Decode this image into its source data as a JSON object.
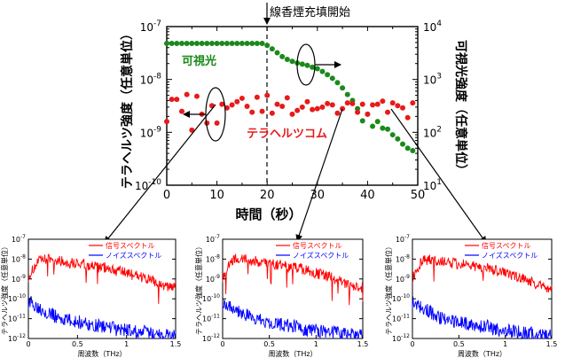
{
  "main_plot": {
    "annotation_top": "線香煙充填開始",
    "ylabel_left": "テラヘルツ強度（任意単位）",
    "ylabel_right": "可視光強度（任意単位）",
    "xlabel": "時間（秒）",
    "label_visible": "可視光",
    "label_thz": "テラヘルツコム",
    "x_ticks": [
      "0",
      "10",
      "20",
      "30",
      "40",
      "50"
    ],
    "left_ticks": [
      {
        "base": "10",
        "exp": "-7",
        "value": -7
      },
      {
        "base": "10",
        "exp": "-8",
        "value": -8
      },
      {
        "base": "10",
        "exp": "-9",
        "value": -9
      },
      {
        "base": "10",
        "exp": "-10",
        "value": -10
      }
    ],
    "right_ticks": [
      {
        "base": "10",
        "exp": "4",
        "value": 4
      },
      {
        "base": "10",
        "exp": "3",
        "value": 3
      },
      {
        "base": "10",
        "exp": "2",
        "value": 2
      },
      {
        "base": "10",
        "exp": "1",
        "value": 1
      }
    ],
    "colors": {
      "visible": "#1a8a1a",
      "thz": "#e81a1a"
    }
  },
  "chart_data": [
    {
      "type": "scatter",
      "xlabel": "時間（秒）",
      "xlim": [
        0,
        50
      ],
      "event_marker_x": 20,
      "series": [
        {
          "name": "可視光",
          "axis": "right",
          "yscale": "log",
          "ylim": [
            10,
            10000
          ],
          "color": "#1a8a1a",
          "x": [
            0,
            1,
            2,
            3,
            4,
            5,
            6,
            7,
            8,
            9,
            10,
            11,
            12,
            13,
            14,
            15,
            16,
            17,
            18,
            19,
            20,
            21,
            22,
            23,
            24,
            25,
            26,
            27,
            28,
            29,
            30,
            31,
            32,
            33,
            34,
            35,
            36,
            37,
            38,
            39,
            40,
            41,
            42,
            43,
            44,
            45,
            46,
            47,
            48,
            49
          ],
          "y": [
            4800,
            4800,
            4800,
            4800,
            4800,
            4800,
            4800,
            4800,
            4800,
            4800,
            4800,
            4800,
            4800,
            4800,
            4800,
            4800,
            4800,
            4800,
            4800,
            4800,
            4400,
            3800,
            3200,
            2700,
            2400,
            2200,
            2050,
            1950,
            1850,
            1700,
            1600,
            1420,
            1230,
            1050,
            870,
            690,
            520,
            400,
            280,
            165,
            220,
            130,
            160,
            120,
            115,
            90,
            75,
            60,
            50,
            45
          ]
        },
        {
          "name": "テラヘルツコム",
          "axis": "left",
          "yscale": "log",
          "ylim": [
            1e-10,
            1e-07
          ],
          "color": "#e81a1a",
          "x": [
            0,
            1,
            2,
            3,
            4,
            5,
            6,
            7,
            8,
            9,
            10,
            11,
            12,
            13,
            14,
            15,
            16,
            17,
            18,
            19,
            20,
            21,
            22,
            23,
            24,
            25,
            26,
            27,
            28,
            29,
            30,
            31,
            32,
            33,
            34,
            35,
            36,
            37,
            38,
            39,
            40,
            41,
            42,
            43,
            44,
            45,
            46,
            47,
            48,
            49
          ],
          "y": [
            1.6e-09,
            4.2e-09,
            4.2e-09,
            2.5e-09,
            5.2e-09,
            1.1e-09,
            4.8e-09,
            2.2e-09,
            1.5e-09,
            3.2e-09,
            1.5e-09,
            3.4e-09,
            2.9e-09,
            3.3e-09,
            3.8e-09,
            4.4e-09,
            3.1e-09,
            2.4e-09,
            4.6e-09,
            2.5e-09,
            5e-09,
            2.3e-09,
            3.4e-09,
            3.1e-09,
            4.5e-09,
            2.2e-09,
            2.6e-09,
            3e-09,
            3.8e-09,
            2.7e-09,
            2.8e-09,
            3e-09,
            3.5e-09,
            3.3e-09,
            2.3e-09,
            2.8e-09,
            3.6e-09,
            3.5e-09,
            2.4e-09,
            3.4e-09,
            2.2e-09,
            3.3e-09,
            3.4e-09,
            3.9e-09,
            2.4e-09,
            3.6e-09,
            3.2e-09,
            2.9e-09,
            1.9e-09,
            3.6e-09
          ]
        }
      ]
    },
    {
      "type": "line",
      "xlabel": "周波数（THz）",
      "ylabel": "テラヘルツ強度（任意単位）",
      "xlim": [
        0,
        1.5
      ],
      "yscale": "log",
      "ylim": [
        1e-12,
        1e-07
      ],
      "x_ticks": [
        "0",
        "0.5",
        "1",
        "1.5"
      ],
      "y_ticks": [
        "10-7",
        "10-8",
        "10-9",
        "10-10",
        "10-11",
        "10-12"
      ],
      "legend": "top-right",
      "series": [
        {
          "name": "信号スペクトル",
          "color": "#ff0000",
          "x": [
            0.0,
            0.1,
            0.2,
            0.3,
            0.4,
            0.5,
            0.6,
            0.7,
            0.8,
            0.9,
            1.0,
            1.1,
            1.2,
            1.3,
            1.4,
            1.5
          ],
          "y": [
            1e-09,
            6e-09,
            8e-09,
            7e-09,
            5e-09,
            5e-09,
            4e-09,
            3e-09,
            3e-09,
            2e-09,
            1.5e-09,
            1.2e-09,
            8e-10,
            5e-10,
            3e-10,
            3e-10
          ]
        },
        {
          "name": "ノイズスペクトル",
          "color": "#0000ff",
          "x": [
            0.0,
            0.1,
            0.2,
            0.3,
            0.4,
            0.5,
            0.6,
            0.7,
            0.8,
            0.9,
            1.0,
            1.1,
            1.2,
            1.3,
            1.4,
            1.5
          ],
          "y": [
            5e-11,
            3e-11,
            1.5e-11,
            8e-12,
            6e-12,
            5e-12,
            4e-12,
            3e-12,
            3e-12,
            2e-12,
            2e-12,
            1.5e-12,
            1.5e-12,
            1.2e-12,
            1.1e-12,
            1e-12
          ]
        }
      ]
    },
    {
      "type": "line",
      "xlabel": "周波数（THz）",
      "ylabel": "テラヘルツ強度（任意単位）",
      "xlim": [
        0,
        1.5
      ],
      "yscale": "log",
      "ylim": [
        1e-12,
        1e-07
      ],
      "x_ticks": [
        "0",
        "0.5",
        "1",
        "1.5"
      ],
      "y_ticks": [
        "10-7",
        "10-8",
        "10-9",
        "10-10",
        "10-11",
        "10-12"
      ],
      "legend": "top-right",
      "series": [
        {
          "name": "信号スペクトル",
          "color": "#ff0000",
          "x": [
            0.0,
            0.1,
            0.2,
            0.3,
            0.4,
            0.5,
            0.6,
            0.7,
            0.8,
            0.9,
            1.0,
            1.1,
            1.2,
            1.3,
            1.4,
            1.5
          ],
          "y": [
            1e-09,
            7e-09,
            9e-09,
            7e-09,
            5e-09,
            5e-09,
            4e-09,
            3e-09,
            3e-09,
            2e-09,
            1.5e-09,
            1.2e-09,
            8e-10,
            5e-10,
            3e-10,
            3e-10
          ]
        },
        {
          "name": "ノイズスペクトル",
          "color": "#0000ff",
          "x": [
            0.0,
            0.1,
            0.2,
            0.3,
            0.4,
            0.5,
            0.6,
            0.7,
            0.8,
            0.9,
            1.0,
            1.1,
            1.2,
            1.3,
            1.4,
            1.5
          ],
          "y": [
            5e-11,
            3e-11,
            1.5e-11,
            8e-12,
            6e-12,
            5e-12,
            4e-12,
            3e-12,
            3e-12,
            2e-12,
            2e-12,
            1.5e-12,
            1.5e-12,
            1.2e-12,
            1.1e-12,
            1e-12
          ]
        }
      ]
    },
    {
      "type": "line",
      "xlabel": "周波数（THz）",
      "ylabel": "テラヘルツ強度（任意単位）",
      "xlim": [
        0,
        1.5
      ],
      "yscale": "log",
      "ylim": [
        1e-12,
        1e-07
      ],
      "x_ticks": [
        "0",
        "0.5",
        "1",
        "1.5"
      ],
      "y_ticks": [
        "10-7",
        "10-8",
        "10-9",
        "10-10",
        "10-11",
        "10-12"
      ],
      "legend": "top-right",
      "series": [
        {
          "name": "信号スペクトル",
          "color": "#ff0000",
          "x": [
            0.0,
            0.1,
            0.2,
            0.3,
            0.4,
            0.5,
            0.6,
            0.7,
            0.8,
            0.9,
            1.0,
            1.1,
            1.2,
            1.3,
            1.4,
            1.5
          ],
          "y": [
            1e-09,
            6e-09,
            8e-09,
            6e-09,
            5e-09,
            4.5e-09,
            4e-09,
            3e-09,
            2.5e-09,
            2e-09,
            1.5e-09,
            1.1e-09,
            8e-10,
            5e-10,
            3e-10,
            3e-10
          ]
        },
        {
          "name": "ノイズスペクトル",
          "color": "#0000ff",
          "x": [
            0.0,
            0.1,
            0.2,
            0.3,
            0.4,
            0.5,
            0.6,
            0.7,
            0.8,
            0.9,
            1.0,
            1.1,
            1.2,
            1.3,
            1.4,
            1.5
          ],
          "y": [
            5e-11,
            3e-11,
            1.5e-11,
            8e-12,
            6e-12,
            5e-12,
            4e-12,
            3e-12,
            3e-12,
            2e-12,
            2e-12,
            1.5e-12,
            1.5e-12,
            1.2e-12,
            1.1e-12,
            1e-12
          ]
        }
      ]
    }
  ]
}
